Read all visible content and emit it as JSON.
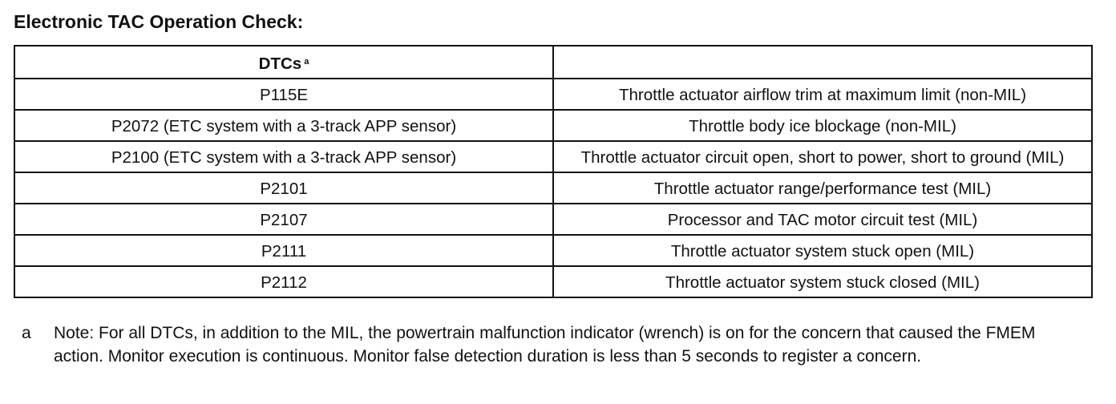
{
  "header": {
    "title": "Electronic TAC Operation Check:"
  },
  "table": {
    "header": [
      "DTCs"
    ],
    "header_note": "a",
    "rows": [
      [
        "P115E",
        "Throttle actuator airflow trim at maximum limit (non-MIL)"
      ],
      [
        "P2072 (ETC system with a 3-track APP sensor)",
        "Throttle body ice blockage (non-MIL)"
      ],
      [
        "P2100 (ETC system with a 3-track APP sensor)",
        "Throttle actuator circuit open, short to power, short to ground (MIL)"
      ],
      [
        "P2101",
        "Throttle actuator range/performance test (MIL)"
      ],
      [
        "P2107",
        "Processor and TAC motor circuit test (MIL)"
      ],
      [
        "P2111",
        "Throttle actuator system stuck open (MIL)"
      ],
      [
        "P2112",
        "Throttle actuator system stuck closed (MIL)"
      ]
    ]
  },
  "footnote": {
    "marker": "a",
    "text": "Note: For all DTCs, in addition to the MIL, the powertrain malfunction indicator (wrench) is on for the concern that caused the FMEM action. Monitor execution is continuous. Monitor false detection duration is less than 5 seconds to register a concern."
  }
}
